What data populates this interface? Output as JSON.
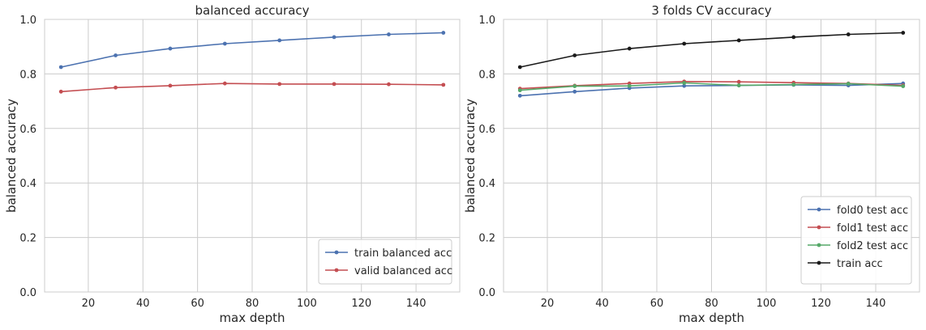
{
  "chart_data": [
    {
      "type": "line",
      "title": "balanced accuracy",
      "xlabel": "max depth",
      "ylabel": "balanced accuracy",
      "xlim": [
        4,
        156
      ],
      "ylim": [
        0,
        1
      ],
      "xticks": [
        20,
        40,
        60,
        80,
        100,
        120,
        140
      ],
      "yticks": [
        0.0,
        0.2,
        0.4,
        0.6,
        0.8,
        1.0
      ],
      "ytick_labels": [
        "0.0",
        "0.2",
        "0.4",
        "0.6",
        "0.8",
        "1.0"
      ],
      "grid": true,
      "legend_position": "lower right",
      "x": [
        10,
        30,
        50,
        70,
        90,
        110,
        130,
        150
      ],
      "series": [
        {
          "name": "train balanced acc",
          "color": "#4c72b0",
          "values": [
            0.825,
            0.868,
            0.893,
            0.911,
            0.923,
            0.935,
            0.945,
            0.951
          ]
        },
        {
          "name": "valid balanced acc",
          "color": "#c44e52",
          "values": [
            0.735,
            0.75,
            0.757,
            0.765,
            0.763,
            0.763,
            0.762,
            0.76
          ]
        }
      ]
    },
    {
      "type": "line",
      "title": "3 folds CV accuracy",
      "xlabel": "max depth",
      "ylabel": "balanced accuracy",
      "xlim": [
        4,
        156
      ],
      "ylim": [
        0,
        1
      ],
      "xticks": [
        20,
        40,
        60,
        80,
        100,
        120,
        140
      ],
      "yticks": [
        0.0,
        0.2,
        0.4,
        0.6,
        0.8,
        1.0
      ],
      "ytick_labels": [
        "0.0",
        "0.2",
        "0.4",
        "0.6",
        "0.8",
        "1.0"
      ],
      "grid": true,
      "legend_position": "lower right",
      "x": [
        10,
        30,
        50,
        70,
        90,
        110,
        130,
        150
      ],
      "series": [
        {
          "name": "fold0 test acc",
          "color": "#4c72b0",
          "values": [
            0.72,
            0.735,
            0.748,
            0.756,
            0.758,
            0.76,
            0.758,
            0.765
          ]
        },
        {
          "name": "fold1 test acc",
          "color": "#c44e52",
          "values": [
            0.746,
            0.757,
            0.765,
            0.772,
            0.771,
            0.768,
            0.765,
            0.758
          ]
        },
        {
          "name": "fold2 test acc",
          "color": "#55a868",
          "values": [
            0.74,
            0.755,
            0.756,
            0.767,
            0.758,
            0.761,
            0.764,
            0.755
          ]
        },
        {
          "name": "train acc",
          "color": "#1a1a1a",
          "values": [
            0.825,
            0.868,
            0.893,
            0.911,
            0.923,
            0.935,
            0.945,
            0.951
          ]
        }
      ]
    }
  ]
}
